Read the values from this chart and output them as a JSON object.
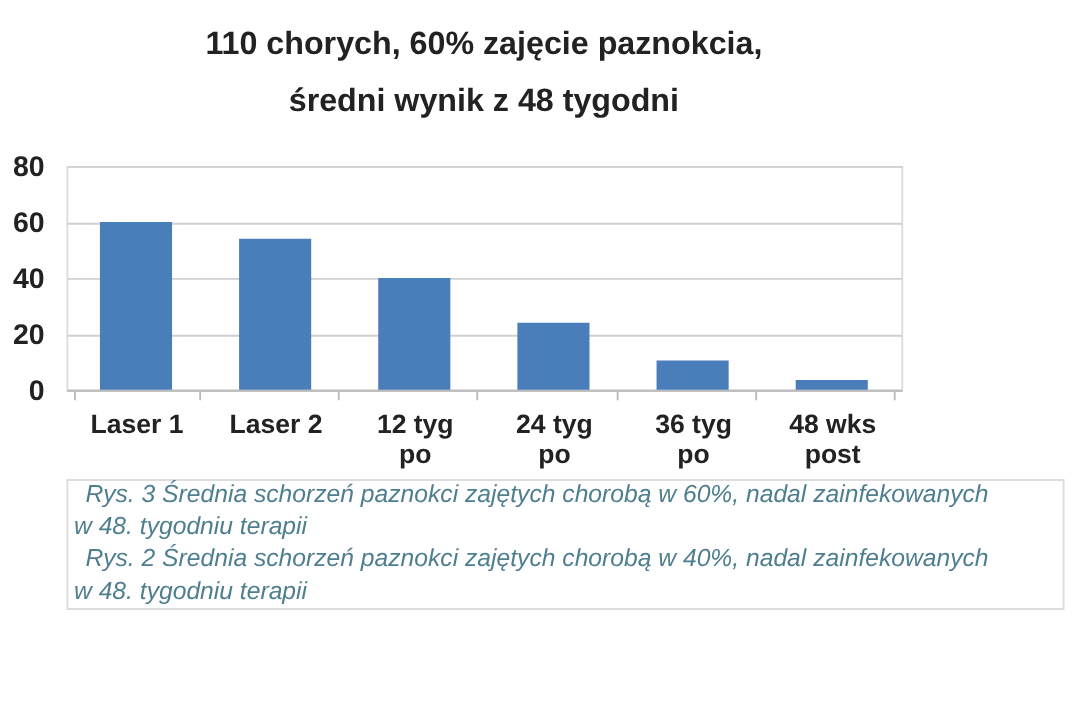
{
  "chart_data": {
    "type": "bar",
    "title": "110 chorych, 60% zajęcie paznokcia,\nśredni wynik z 48 tygodni",
    "categories": [
      "Laser 1",
      "Laser 2",
      "12 tyg po",
      "24 tyg po",
      "36 tyg po",
      "48 wks post"
    ],
    "values": [
      60,
      54,
      40,
      24,
      10.5,
      3.5
    ],
    "color": "#4a7ebb",
    "ylim": [
      0,
      80
    ],
    "yticks": [
      0,
      20,
      40,
      60,
      80
    ],
    "grid": "y",
    "annotations": [
      "Rys. 3 Średnia schorzeń paznokci zajętych chorobą w 60%, nadal zainfekowanych w 48. tygodniu terapii",
      "Rys. 2 Średnia schorzeń paznokci zajętych chorobą w 40%, nadal zainfekowanych w 48. tygodniu terapii"
    ]
  }
}
